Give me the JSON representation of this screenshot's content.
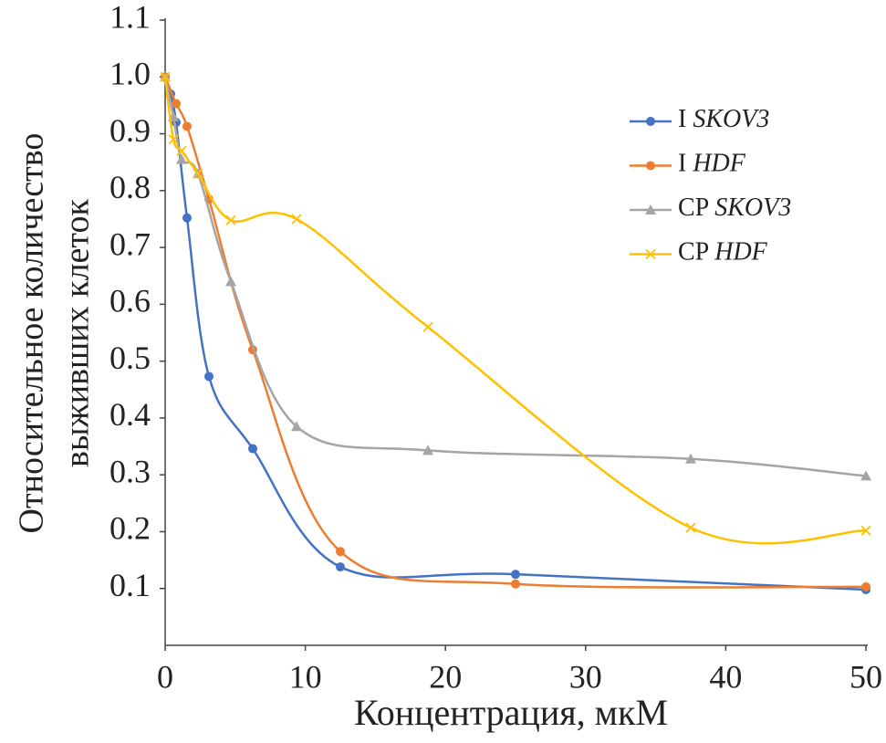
{
  "chart_data": {
    "type": "line",
    "xlabel": "Концентрация, мкМ",
    "ylabel": [
      "Относительное количество",
      "выживших клеток"
    ],
    "xlim": [
      0,
      50
    ],
    "xticks": [
      0,
      10,
      20,
      30,
      40,
      50
    ],
    "ylim": [
      0,
      1.1
    ],
    "yticks": [
      0.1,
      0.2,
      0.3,
      0.4,
      0.5,
      0.6,
      0.7,
      0.8,
      0.9,
      {
        "value": 1,
        "label": "1.0"
      },
      1.1
    ],
    "grid": false,
    "smooth": true,
    "legend": "upper right",
    "series": [
      {
        "name": "I SKOV3",
        "color": "#4472c4",
        "marker": "circle",
        "x": [
          0,
          0.39,
          0.78,
          1.56,
          3.125,
          6.25,
          12.5,
          25,
          50
        ],
        "values": [
          1.0,
          0.97,
          0.92,
          0.752,
          0.473,
          0.346,
          0.138,
          0.125,
          0.098
        ]
      },
      {
        "name": "I HDF",
        "color": "#ed7d31",
        "marker": "circle",
        "x": [
          0,
          0.78,
          1.56,
          3.125,
          6.25,
          12.5,
          25,
          50
        ],
        "values": [
          1.0,
          0.953,
          0.913,
          0.785,
          0.52,
          0.165,
          0.108,
          0.103
        ]
      },
      {
        "name": "CP SKOV3",
        "color": "#a5a5a5",
        "marker": "triangle",
        "x": [
          0,
          0.59,
          1.17,
          2.34,
          4.69,
          9.375,
          18.75,
          37.5,
          50
        ],
        "values": [
          1.0,
          0.93,
          0.855,
          0.83,
          0.64,
          0.385,
          0.343,
          0.328,
          0.298
        ]
      },
      {
        "name": "CP HDF",
        "color": "#ffc000",
        "marker": "x",
        "x": [
          0,
          0.59,
          1.17,
          2.34,
          4.69,
          9.375,
          18.75,
          37.5,
          50
        ],
        "values": [
          1.0,
          0.89,
          0.87,
          0.83,
          0.748,
          0.75,
          0.56,
          0.207,
          0.202
        ]
      }
    ]
  }
}
